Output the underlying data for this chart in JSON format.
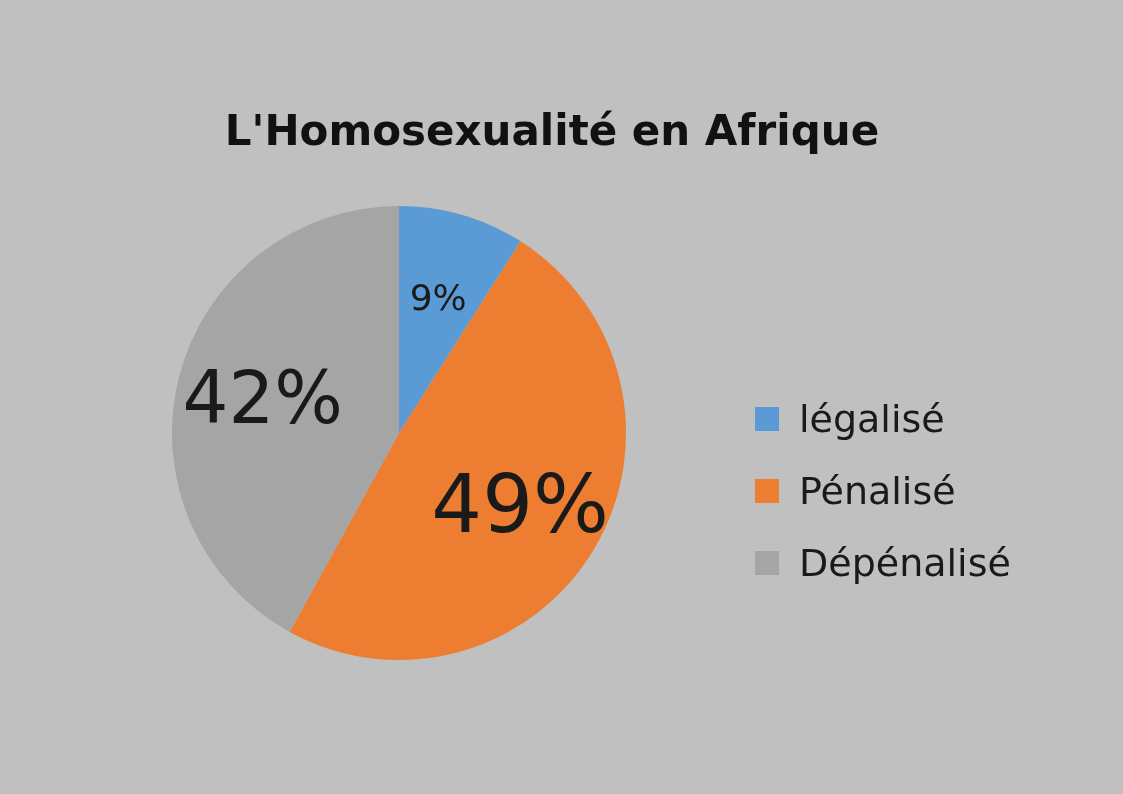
{
  "chart_data": {
    "type": "pie",
    "title": "L'Homosexualité en Afrique",
    "categories": [
      "légalisé",
      "Pénalisé",
      "Dépénalisé"
    ],
    "values": [
      9,
      49,
      42
    ],
    "colors": [
      "#5b9bd5",
      "#ed7d31",
      "#a5a5a5"
    ],
    "value_labels": [
      "9%",
      "49%",
      "42%"
    ],
    "legend": "right"
  }
}
